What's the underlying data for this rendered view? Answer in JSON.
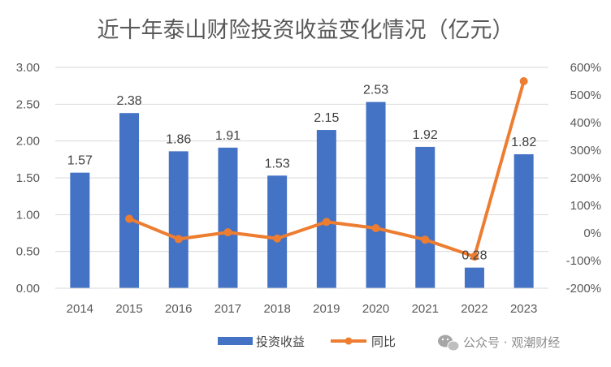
{
  "chart_data": {
    "type": "bar",
    "title": "近十年泰山财险投资收益变化情况（亿元）",
    "categories": [
      "2014",
      "2015",
      "2016",
      "2017",
      "2018",
      "2019",
      "2020",
      "2021",
      "2022",
      "2023"
    ],
    "series": [
      {
        "name": "投资收益",
        "type": "bar",
        "axis": "left",
        "color": "#4472C4",
        "values": [
          1.57,
          2.38,
          1.86,
          1.91,
          1.53,
          2.15,
          2.53,
          1.92,
          0.28,
          1.82
        ],
        "labels": [
          "1.57",
          "2.38",
          "1.86",
          "1.91",
          "1.53",
          "2.15",
          "2.53",
          "1.92",
          "0.28",
          "1.82"
        ]
      },
      {
        "name": "同比",
        "type": "line",
        "axis": "right",
        "color": "#ED7D31",
        "values": [
          null,
          51.6,
          -21.8,
          2.7,
          -19.9,
          40.5,
          17.7,
          -24.1,
          -85.4,
          550.0
        ]
      }
    ],
    "y_left": {
      "ylim": [
        0,
        3
      ],
      "ticks": [
        "0.00",
        "0.50",
        "1.00",
        "1.50",
        "2.00",
        "2.50",
        "3.00"
      ]
    },
    "y_right": {
      "ylim": [
        -200,
        600
      ],
      "ticks": [
        "-200%",
        "-100%",
        "0%",
        "100%",
        "200%",
        "300%",
        "400%",
        "500%",
        "600%"
      ]
    },
    "grid": true,
    "legend_position": "bottom"
  },
  "watermark": {
    "text": "公众号 · 观潮财经",
    "icon": "wechat-icon"
  }
}
